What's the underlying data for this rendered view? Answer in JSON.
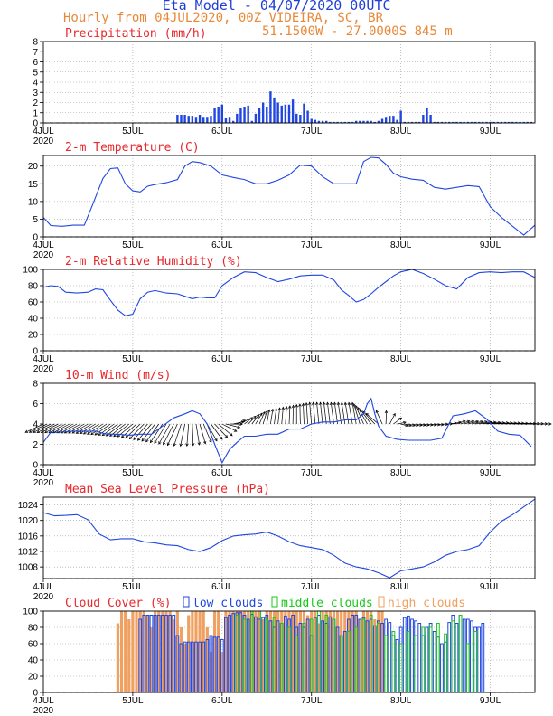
{
  "header": {
    "title": "Eta Model - 04/07/2020 00UTC",
    "subtitle": "Hourly from 04JUL2020, 00Z  VIDEIRA, SC, BR",
    "coords": "51.1500W - 27.0000S     845  m"
  },
  "colors": {
    "title": "#1f3fd6",
    "meta": "#e8893a",
    "panel_title": "#e8282d",
    "line": "#1f46e0",
    "wind": "#000000",
    "grid": "#9a9a9a",
    "low": "#1f46e0",
    "mid": "#18c818",
    "high": "#f0a060"
  },
  "chart_data": [
    {
      "id": "precip",
      "type": "bar",
      "title": "Precipitation (mm/h)",
      "ylim": [
        0,
        8
      ],
      "yticks": [
        0,
        1,
        2,
        3,
        4,
        5,
        6,
        7,
        8
      ],
      "xlim": [
        0,
        132
      ],
      "xticks": [
        0,
        24,
        48,
        72,
        96,
        120
      ],
      "xticklabels": [
        "4JUL",
        "5JUL",
        "6JUL",
        "7JUL",
        "8JUL",
        "9JUL"
      ],
      "year_label": "2020",
      "x": [
        36,
        37,
        38,
        39,
        40,
        41,
        42,
        43,
        44,
        45,
        46,
        47,
        48,
        49,
        50,
        51,
        52,
        53,
        54,
        55,
        56,
        57,
        58,
        59,
        60,
        61,
        62,
        63,
        64,
        65,
        66,
        67,
        68,
        69,
        70,
        71,
        72,
        73,
        74,
        75,
        76,
        77,
        78,
        79,
        80,
        81,
        82,
        83,
        84,
        85,
        86,
        87,
        88,
        89,
        90,
        91,
        92,
        93,
        94,
        95,
        96,
        97,
        98,
        99,
        100,
        101,
        102,
        103,
        104,
        105,
        106,
        107,
        108,
        109,
        110,
        111,
        112,
        113,
        114,
        115,
        116,
        117,
        118,
        119,
        120,
        121,
        122,
        123,
        124,
        125,
        126,
        127,
        128,
        129,
        130,
        131
      ],
      "values": [
        0.8,
        0.8,
        0.8,
        0.7,
        0.7,
        0.6,
        0.8,
        0.6,
        0.6,
        0.7,
        1.5,
        1.6,
        1.8,
        0.5,
        0.6,
        0.2,
        0.9,
        1.5,
        1.6,
        1.7,
        0.2,
        0.9,
        1.5,
        2.0,
        1.6,
        3.1,
        2.5,
        2.0,
        1.7,
        1.8,
        1.8,
        2.3,
        0.9,
        0.8,
        1.9,
        1.2,
        0.4,
        0.3,
        0.2,
        0.2,
        0.2,
        0.1,
        0.1,
        0.1,
        0.1,
        0.1,
        0.1,
        0.1,
        0.2,
        0.2,
        0.2,
        0.2,
        0.2,
        0.1,
        0.2,
        0.4,
        0.6,
        0.7,
        0.7,
        0.3,
        1.2,
        0.1,
        0.1,
        0.1,
        0.1,
        0.1,
        0.8,
        1.5,
        0.8,
        0.1,
        0.1,
        0.1,
        0.1,
        0.1,
        0.1,
        0.1,
        0.1,
        0.1,
        0.1,
        0.1,
        0.1,
        0.1,
        0.1,
        0.1,
        0.1,
        0.1,
        0.1,
        0.1,
        0.1,
        0.1,
        0.1,
        0.1,
        0.1,
        0.1,
        0.1,
        0.1
      ]
    },
    {
      "id": "temp",
      "type": "line",
      "title": "2-m Temperature (C)",
      "ylim": [
        0,
        23
      ],
      "yticks": [
        0,
        5,
        10,
        15,
        20
      ],
      "xlim": [
        0,
        132
      ],
      "xticks": [
        0,
        24,
        48,
        72,
        96,
        120
      ],
      "xticklabels": [
        "4JUL",
        "5JUL",
        "6JUL",
        "7JUL",
        "8JUL",
        "9JUL"
      ],
      "year_label": "2020",
      "x": [
        0,
        2,
        5,
        8,
        11,
        13,
        16,
        18,
        20,
        22,
        24,
        26,
        28,
        30,
        33,
        36,
        38,
        40,
        42,
        45,
        48,
        51,
        54,
        57,
        60,
        63,
        66,
        69,
        72,
        75,
        78,
        81,
        84,
        86,
        88,
        90,
        92,
        94,
        96,
        99,
        102,
        105,
        108,
        111,
        114,
        117,
        120,
        123,
        126,
        129,
        132
      ],
      "values": [
        5.5,
        3.2,
        3.0,
        3.3,
        3.3,
        8.5,
        16.5,
        19.3,
        19.5,
        15.0,
        13.0,
        12.7,
        14.3,
        14.8,
        15.3,
        16.2,
        20.0,
        21.3,
        21.0,
        20.0,
        17.5,
        16.8,
        16.2,
        15.0,
        15.0,
        16.0,
        17.5,
        20.3,
        20.0,
        17.0,
        15.0,
        15.0,
        15.0,
        21.3,
        22.5,
        22.3,
        20.5,
        18.0,
        17.0,
        16.3,
        16.0,
        14.0,
        13.5,
        14.0,
        14.5,
        14.2,
        8.5,
        5.5,
        3.0,
        0.5,
        3.3
      ]
    },
    {
      "id": "rh",
      "type": "line",
      "title": "2-m Relative Humidity (%)",
      "ylim": [
        0,
        100
      ],
      "yticks": [
        0,
        20,
        40,
        60,
        80,
        100
      ],
      "xlim": [
        0,
        132
      ],
      "xticks": [
        0,
        24,
        48,
        72,
        96,
        120
      ],
      "xticklabels": [
        "4JUL",
        "5JUL",
        "6JUL",
        "7JUL",
        "8JUL",
        "9JUL"
      ],
      "year_label": "2020",
      "x": [
        0,
        2,
        4,
        6,
        9,
        12,
        14,
        16,
        18,
        20,
        22,
        24,
        26,
        28,
        30,
        33,
        36,
        38,
        40,
        42,
        44,
        46,
        48,
        51,
        54,
        57,
        60,
        63,
        66,
        69,
        72,
        75,
        78,
        80,
        82,
        84,
        86,
        88,
        90,
        92,
        94,
        96,
        99,
        102,
        105,
        108,
        111,
        114,
        117,
        120,
        123,
        126,
        129,
        132
      ],
      "values": [
        78,
        80,
        79,
        72,
        71,
        72,
        76,
        75,
        62,
        50,
        43,
        45,
        64,
        72,
        74,
        71,
        70,
        67,
        64,
        66,
        65,
        65,
        80,
        90,
        97,
        96,
        90,
        85,
        88,
        92,
        93,
        93,
        87,
        75,
        68,
        60,
        63,
        70,
        78,
        85,
        92,
        97,
        100,
        95,
        88,
        80,
        76,
        90,
        96,
        97,
        96,
        97,
        97,
        90
      ]
    },
    {
      "id": "wind",
      "type": "line",
      "title": "10-m Wind (m/s)",
      "ylim": [
        0,
        8
      ],
      "yticks": [
        0,
        2,
        4,
        6,
        8
      ],
      "xlim": [
        0,
        132
      ],
      "xticks": [
        0,
        24,
        48,
        72,
        96,
        120
      ],
      "xticklabels": [
        "4JUL",
        "5JUL",
        "6JUL",
        "7JUL",
        "8JUL",
        "9JUL"
      ],
      "year_label": "2020",
      "x": [
        0,
        2,
        5,
        8,
        11,
        14,
        17,
        20,
        23,
        26,
        29,
        32,
        35,
        38,
        40,
        42,
        44,
        46,
        48,
        50,
        52,
        54,
        57,
        60,
        63,
        66,
        69,
        72,
        75,
        78,
        81,
        84,
        86,
        87,
        88,
        89,
        90,
        92,
        95,
        98,
        101,
        104,
        107,
        110,
        113,
        116,
        119,
        122,
        125,
        128,
        131
      ],
      "values": [
        2.2,
        3.2,
        3.2,
        3.3,
        3.3,
        3.3,
        3.0,
        3.0,
        2.9,
        3.0,
        3.0,
        3.8,
        4.6,
        5.0,
        5.3,
        5.0,
        4.0,
        2.0,
        0.2,
        1.5,
        2.2,
        2.8,
        2.8,
        3.0,
        3.0,
        3.5,
        3.5,
        4.0,
        4.2,
        4.2,
        4.4,
        4.4,
        5.0,
        6.0,
        6.5,
        5.0,
        3.8,
        2.8,
        2.5,
        2.4,
        2.4,
        2.4,
        2.6,
        4.8,
        5.0,
        5.3,
        4.5,
        3.3,
        3.0,
        2.9,
        1.8
      ],
      "arrows": {
        "start": 0,
        "end": 132,
        "step": 1,
        "keyframes_x": [
          0,
          12,
          24,
          36,
          47,
          52,
          60,
          72,
          84,
          90,
          96,
          106,
          111,
          120,
          132
        ],
        "keyframes_angle_deg": [
          -155,
          -150,
          -140,
          -115,
          -40,
          25,
          80,
          95,
          100,
          140,
          -15,
          -10,
          20,
          5,
          0
        ],
        "keyframes_len": [
          22,
          20,
          22,
          26,
          20,
          10,
          16,
          24,
          24,
          18,
          8,
          6,
          10,
          16,
          18
        ]
      }
    },
    {
      "id": "mslp",
      "type": "line",
      "title": "Mean Sea Level Pressure (hPa)",
      "ylim": [
        1005,
        1026
      ],
      "yticks": [
        1008,
        1012,
        1016,
        1020,
        1024
      ],
      "xlim": [
        0,
        132
      ],
      "xticks": [
        0,
        24,
        48,
        72,
        96,
        120
      ],
      "xticklabels": [
        "4JUL",
        "5JUL",
        "6JUL",
        "7JUL",
        "8JUL",
        "9JUL"
      ],
      "year_label": "2020",
      "x": [
        0,
        3,
        6,
        9,
        12,
        15,
        18,
        21,
        24,
        27,
        30,
        33,
        36,
        39,
        42,
        45,
        48,
        51,
        54,
        57,
        60,
        63,
        66,
        69,
        72,
        75,
        78,
        81,
        84,
        87,
        90,
        93,
        96,
        99,
        102,
        105,
        108,
        111,
        114,
        117,
        120,
        123,
        126,
        129,
        132
      ],
      "values": [
        1022,
        1021.2,
        1021.3,
        1021.5,
        1020.2,
        1016.5,
        1015,
        1015.3,
        1015.3,
        1014.5,
        1014.2,
        1013.7,
        1013.5,
        1012.5,
        1012.0,
        1013.0,
        1014.8,
        1016.0,
        1016.3,
        1016.5,
        1017.0,
        1016.0,
        1014.5,
        1013.5,
        1013.0,
        1012.5,
        1011.0,
        1009.0,
        1008.0,
        1007.5,
        1006.5,
        1005.2,
        1007.0,
        1007.5,
        1008.0,
        1009.3,
        1011.0,
        1012.0,
        1012.5,
        1013.5,
        1017.0,
        1019.8,
        1021.5,
        1023.5,
        1025.5
      ]
    },
    {
      "id": "cloud",
      "type": "bar",
      "title": "Cloud Cover (%)",
      "legend": [
        "low clouds",
        "middle clouds",
        "high clouds"
      ],
      "ylim": [
        0,
        100
      ],
      "yticks": [
        0,
        20,
        40,
        60,
        80,
        100
      ],
      "xlim": [
        0,
        132
      ],
      "xticks": [
        0,
        24,
        48,
        72,
        96,
        120
      ],
      "xticklabels": [
        "4JUL",
        "5JUL",
        "6JUL",
        "7JUL",
        "8JUL",
        "9JUL"
      ],
      "year_label": "2020",
      "series": [
        {
          "name": "high clouds",
          "x": [
            20,
            21,
            22,
            23,
            24,
            25,
            26,
            27,
            28,
            29,
            30,
            31,
            32,
            33,
            34,
            35,
            36,
            37,
            38,
            39,
            40,
            41,
            42,
            43,
            44,
            45,
            46,
            47,
            48,
            49,
            50,
            51,
            52,
            53,
            54,
            55,
            56,
            57,
            58,
            59,
            60,
            61,
            62,
            63,
            64,
            65,
            66,
            67,
            68,
            69,
            70,
            71,
            72,
            73,
            74,
            75,
            76,
            77,
            78,
            79,
            80,
            81,
            82,
            83,
            84,
            85,
            86,
            87,
            88,
            89,
            90,
            91
          ],
          "values": [
            85,
            100,
            100,
            90,
            100,
            100,
            100,
            100,
            95,
            80,
            100,
            100,
            100,
            100,
            100,
            90,
            100,
            80,
            60,
            95,
            100,
            100,
            100,
            100,
            80,
            50,
            100,
            100,
            50,
            100,
            100,
            100,
            100,
            100,
            100,
            100,
            100,
            100,
            100,
            90,
            100,
            100,
            100,
            100,
            100,
            100,
            100,
            100,
            100,
            100,
            100,
            95,
            100,
            100,
            85,
            100,
            100,
            100,
            100,
            100,
            100,
            100,
            100,
            100,
            100,
            90,
            100,
            100,
            100,
            90,
            100,
            100
          ]
        },
        {
          "name": "low clouds",
          "x": [
            26,
            27,
            28,
            29,
            30,
            31,
            32,
            33,
            34,
            35,
            36,
            37,
            38,
            39,
            40,
            41,
            42,
            43,
            44,
            45,
            46,
            47,
            48,
            49,
            50,
            51,
            52,
            53,
            54,
            55,
            56,
            57,
            58,
            59,
            60,
            61,
            62,
            63,
            64,
            65,
            66,
            67,
            68,
            69,
            70,
            71,
            72,
            73,
            74,
            75,
            76,
            77,
            78,
            79,
            80,
            81,
            82,
            83,
            84,
            85,
            86,
            87,
            88,
            89,
            90,
            91,
            92,
            93,
            94,
            95,
            96,
            97,
            98,
            99,
            100,
            101,
            102,
            103,
            104,
            105,
            106,
            107,
            108,
            109,
            110,
            111,
            112,
            113,
            114,
            115,
            116,
            117,
            118
          ],
          "values": [
            90,
            95,
            95,
            95,
            95,
            95,
            95,
            95,
            95,
            95,
            70,
            60,
            62,
            62,
            62,
            62,
            62,
            62,
            65,
            70,
            68,
            68,
            65,
            92,
            95,
            97,
            98,
            98,
            95,
            90,
            96,
            93,
            90,
            92,
            95,
            88,
            80,
            88,
            85,
            94,
            90,
            95,
            80,
            85,
            80,
            90,
            70,
            92,
            95,
            88,
            85,
            93,
            90,
            80,
            70,
            75,
            90,
            95,
            95,
            90,
            92,
            88,
            90,
            82,
            88,
            85,
            90,
            86,
            70,
            65,
            80,
            92,
            94,
            90,
            88,
            85,
            70,
            80,
            85,
            75,
            68,
            60,
            62,
            86,
            95,
            85,
            95,
            90,
            90,
            88,
            80,
            80,
            85
          ]
        },
        {
          "name": "middle clouds",
          "x": [
            52,
            54,
            56,
            58,
            60,
            62,
            64,
            66,
            68,
            70,
            72,
            74,
            76,
            78,
            80,
            82,
            84,
            86,
            88,
            90,
            92,
            94,
            96,
            98,
            100,
            102,
            104,
            106,
            108,
            110,
            112,
            114,
            116
          ],
          "values": [
            95,
            90,
            100,
            100,
            90,
            92,
            85,
            80,
            70,
            85,
            90,
            100,
            95,
            90,
            70,
            75,
            80,
            90,
            95,
            85,
            70,
            75,
            60,
            75,
            70,
            80,
            80,
            85,
            72,
            88,
            95,
            60,
            75
          ]
        }
      ]
    }
  ]
}
